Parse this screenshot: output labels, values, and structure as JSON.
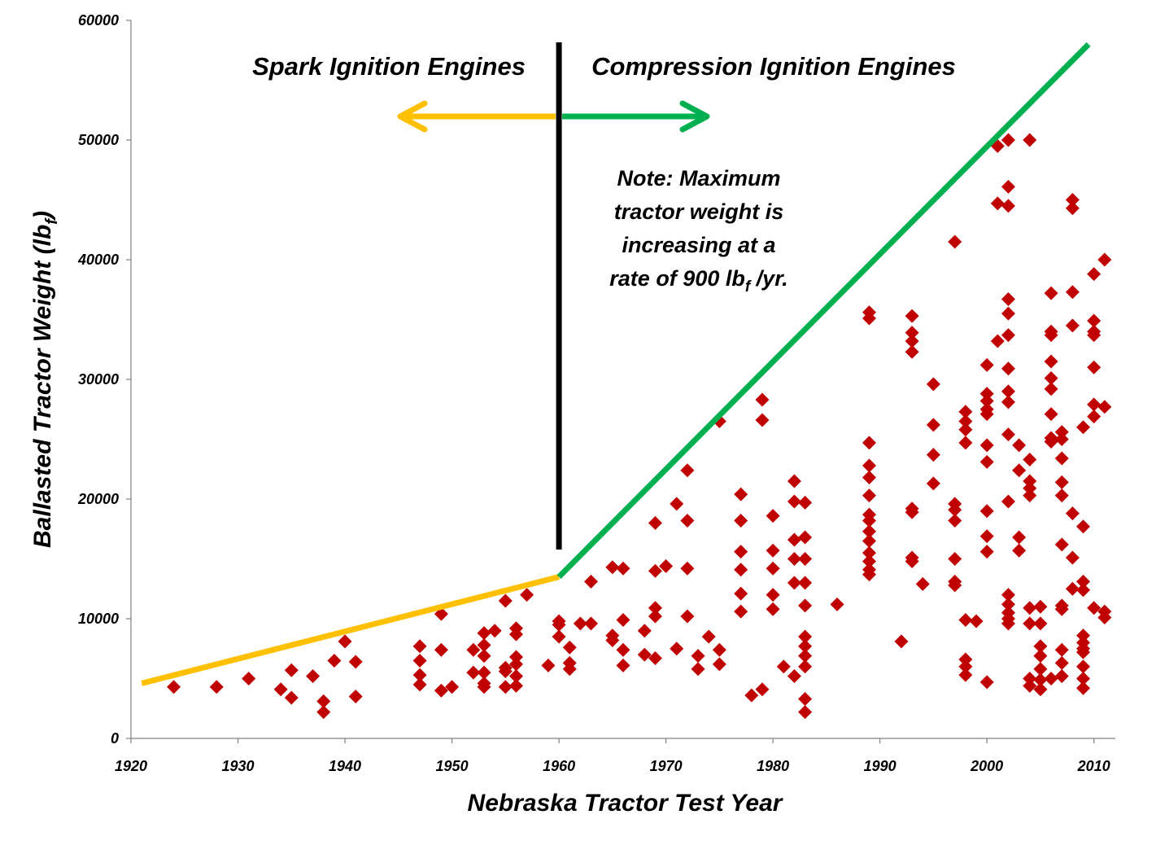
{
  "colors": {
    "background": "#ffffff",
    "points": "#c00000",
    "spark": "#ffc000",
    "compression": "#00b050",
    "divider": "#000000",
    "axis": "#808080"
  },
  "chart_data": {
    "type": "scatter",
    "title": "",
    "xlabel": "Nebraska Tractor Test Year",
    "ylabel": {
      "text": "Ballasted Tractor Weight (lb",
      "subscript": "f",
      "close": ")"
    },
    "xlim": [
      1920,
      2012
    ],
    "ylim": [
      0,
      60000
    ],
    "xticks": [
      "1920",
      "1930",
      "1940",
      "1950",
      "1960",
      "1970",
      "1980",
      "1990",
      "2000",
      "2010"
    ],
    "yticks": [
      "0",
      "10000",
      "20000",
      "30000",
      "40000",
      "50000",
      "60000"
    ],
    "grid": false,
    "legend": "none",
    "regions": {
      "spark": {
        "label": "Spark Ignition Engines",
        "arrow": "left"
      },
      "compression": {
        "label": "Compression Ignition Engines",
        "arrow": "right"
      },
      "divider_year": 1960
    },
    "note": {
      "lines": [
        "Note: Maximum",
        "tractor weight is",
        "increasing at a"
      ],
      "last_line": {
        "before": "rate of 900 lb",
        "subscript": "f",
        "after": " /yr."
      }
    },
    "trend_lines": [
      {
        "name": "spark_max",
        "x": [
          1921,
          1960
        ],
        "y": [
          4600,
          13500
        ]
      },
      {
        "name": "compression_max",
        "x": [
          1960,
          2009.5
        ],
        "y": [
          13500,
          58000
        ]
      }
    ],
    "series": [
      {
        "points": [
          [
            1924,
            4300
          ],
          [
            1928,
            4300
          ],
          [
            1931,
            5000
          ],
          [
            1934,
            4100
          ],
          [
            1935,
            5700
          ],
          [
            1935,
            3400
          ],
          [
            1937,
            5200
          ],
          [
            1938,
            3100
          ],
          [
            1938,
            2200
          ],
          [
            1939,
            6500
          ],
          [
            1940,
            8100
          ],
          [
            1941,
            6400
          ],
          [
            1941,
            3500
          ],
          [
            1947,
            7700
          ],
          [
            1947,
            6500
          ],
          [
            1947,
            5300
          ],
          [
            1947,
            4500
          ],
          [
            1949,
            10400
          ],
          [
            1949,
            7400
          ],
          [
            1949,
            4000
          ],
          [
            1950,
            4300
          ],
          [
            1952,
            7400
          ],
          [
            1952,
            5500
          ],
          [
            1953,
            8800
          ],
          [
            1953,
            7800
          ],
          [
            1953,
            6900
          ],
          [
            1953,
            5500
          ],
          [
            1953,
            4600
          ],
          [
            1953,
            4300
          ],
          [
            1954,
            9000
          ],
          [
            1955,
            11500
          ],
          [
            1955,
            5900
          ],
          [
            1955,
            5600
          ],
          [
            1955,
            4300
          ],
          [
            1956,
            9200
          ],
          [
            1956,
            8700
          ],
          [
            1956,
            6800
          ],
          [
            1956,
            6200
          ],
          [
            1956,
            5200
          ],
          [
            1956,
            4400
          ],
          [
            1957,
            12000
          ],
          [
            1959,
            6100
          ],
          [
            1960,
            9800
          ],
          [
            1960,
            9500
          ],
          [
            1960,
            8500
          ],
          [
            1961,
            7600
          ],
          [
            1961,
            6300
          ],
          [
            1961,
            5800
          ],
          [
            1962,
            9600
          ],
          [
            1963,
            13100
          ],
          [
            1963,
            9600
          ],
          [
            1965,
            14300
          ],
          [
            1965,
            8600
          ],
          [
            1965,
            8200
          ],
          [
            1966,
            14200
          ],
          [
            1966,
            9900
          ],
          [
            1966,
            7400
          ],
          [
            1966,
            6100
          ],
          [
            1968,
            9000
          ],
          [
            1968,
            7000
          ],
          [
            1969,
            18000
          ],
          [
            1969,
            14000
          ],
          [
            1969,
            10900
          ],
          [
            1969,
            10200
          ],
          [
            1969,
            6700
          ],
          [
            1970,
            14400
          ],
          [
            1971,
            19600
          ],
          [
            1971,
            7500
          ],
          [
            1972,
            22400
          ],
          [
            1972,
            18200
          ],
          [
            1972,
            14200
          ],
          [
            1972,
            10200
          ],
          [
            1973,
            6900
          ],
          [
            1973,
            5800
          ],
          [
            1974,
            8500
          ],
          [
            1975,
            26500
          ],
          [
            1975,
            7400
          ],
          [
            1975,
            6200
          ],
          [
            1977,
            20400
          ],
          [
            1977,
            18200
          ],
          [
            1977,
            15600
          ],
          [
            1977,
            14100
          ],
          [
            1977,
            12100
          ],
          [
            1977,
            10600
          ],
          [
            1978,
            3600
          ],
          [
            1979,
            28300
          ],
          [
            1979,
            26600
          ],
          [
            1979,
            4100
          ],
          [
            1980,
            18600
          ],
          [
            1980,
            15700
          ],
          [
            1980,
            14200
          ],
          [
            1980,
            12000
          ],
          [
            1980,
            10800
          ],
          [
            1981,
            6000
          ],
          [
            1982,
            21500
          ],
          [
            1982,
            19800
          ],
          [
            1982,
            16600
          ],
          [
            1982,
            15000
          ],
          [
            1982,
            13000
          ],
          [
            1982,
            5200
          ],
          [
            1983,
            19700
          ],
          [
            1983,
            16800
          ],
          [
            1983,
            15000
          ],
          [
            1983,
            13000
          ],
          [
            1983,
            11100
          ],
          [
            1983,
            8500
          ],
          [
            1983,
            7700
          ],
          [
            1983,
            6900
          ],
          [
            1983,
            6000
          ],
          [
            1983,
            3300
          ],
          [
            1983,
            2200
          ],
          [
            1986,
            11200
          ],
          [
            1989,
            35600
          ],
          [
            1989,
            35100
          ],
          [
            1989,
            24700
          ],
          [
            1989,
            22800
          ],
          [
            1989,
            21800
          ],
          [
            1989,
            20300
          ],
          [
            1989,
            18700
          ],
          [
            1989,
            18200
          ],
          [
            1989,
            17300
          ],
          [
            1989,
            16500
          ],
          [
            1989,
            15500
          ],
          [
            1989,
            14800
          ],
          [
            1989,
            14100
          ],
          [
            1989,
            13700
          ],
          [
            1992,
            8100
          ],
          [
            1993,
            35300
          ],
          [
            1993,
            33900
          ],
          [
            1993,
            33200
          ],
          [
            1993,
            32300
          ],
          [
            1993,
            19200
          ],
          [
            1993,
            18900
          ],
          [
            1993,
            15100
          ],
          [
            1993,
            14800
          ],
          [
            1994,
            12900
          ],
          [
            1995,
            29600
          ],
          [
            1995,
            26200
          ],
          [
            1995,
            23700
          ],
          [
            1995,
            21300
          ],
          [
            1997,
            41500
          ],
          [
            1997,
            19600
          ],
          [
            1997,
            19100
          ],
          [
            1997,
            18200
          ],
          [
            1997,
            15000
          ],
          [
            1997,
            13100
          ],
          [
            1997,
            12800
          ],
          [
            1998,
            27300
          ],
          [
            1998,
            26500
          ],
          [
            1998,
            25800
          ],
          [
            1998,
            24700
          ],
          [
            1998,
            9900
          ],
          [
            1998,
            6600
          ],
          [
            1998,
            6000
          ],
          [
            1998,
            5300
          ],
          [
            1999,
            9800
          ],
          [
            2000,
            31200
          ],
          [
            2000,
            28800
          ],
          [
            2000,
            28200
          ],
          [
            2000,
            27500
          ],
          [
            2000,
            27100
          ],
          [
            2000,
            24500
          ],
          [
            2000,
            23100
          ],
          [
            2000,
            19000
          ],
          [
            2000,
            16900
          ],
          [
            2000,
            15600
          ],
          [
            2000,
            4700
          ],
          [
            2001,
            49500
          ],
          [
            2001,
            44700
          ],
          [
            2001,
            33200
          ],
          [
            2002,
            50000
          ],
          [
            2002,
            46100
          ],
          [
            2002,
            44500
          ],
          [
            2002,
            36700
          ],
          [
            2002,
            35500
          ],
          [
            2002,
            33700
          ],
          [
            2002,
            30900
          ],
          [
            2002,
            29000
          ],
          [
            2002,
            28100
          ],
          [
            2002,
            25400
          ],
          [
            2002,
            19800
          ],
          [
            2002,
            12000
          ],
          [
            2002,
            11200
          ],
          [
            2002,
            10500
          ],
          [
            2002,
            10000
          ],
          [
            2002,
            9600
          ],
          [
            2003,
            24500
          ],
          [
            2003,
            22400
          ],
          [
            2003,
            16800
          ],
          [
            2003,
            15700
          ],
          [
            2004,
            50000
          ],
          [
            2004,
            23300
          ],
          [
            2004,
            21500
          ],
          [
            2004,
            20900
          ],
          [
            2004,
            20300
          ],
          [
            2004,
            10900
          ],
          [
            2004,
            9600
          ],
          [
            2004,
            5000
          ],
          [
            2004,
            4400
          ],
          [
            2005,
            11000
          ],
          [
            2005,
            9600
          ],
          [
            2005,
            7700
          ],
          [
            2005,
            6900
          ],
          [
            2005,
            5800
          ],
          [
            2005,
            4900
          ],
          [
            2005,
            4100
          ],
          [
            2006,
            37200
          ],
          [
            2006,
            34000
          ],
          [
            2006,
            33700
          ],
          [
            2006,
            31500
          ],
          [
            2006,
            30100
          ],
          [
            2006,
            29200
          ],
          [
            2006,
            27100
          ],
          [
            2006,
            25100
          ],
          [
            2006,
            24800
          ],
          [
            2006,
            5000
          ],
          [
            2007,
            25600
          ],
          [
            2007,
            25000
          ],
          [
            2007,
            23400
          ],
          [
            2007,
            21400
          ],
          [
            2007,
            20300
          ],
          [
            2007,
            16200
          ],
          [
            2007,
            11100
          ],
          [
            2007,
            10800
          ],
          [
            2007,
            7400
          ],
          [
            2007,
            6300
          ],
          [
            2007,
            5200
          ],
          [
            2008,
            45000
          ],
          [
            2008,
            44300
          ],
          [
            2008,
            37300
          ],
          [
            2008,
            34500
          ],
          [
            2008,
            18800
          ],
          [
            2008,
            15100
          ],
          [
            2008,
            12500
          ],
          [
            2009,
            26000
          ],
          [
            2009,
            17700
          ],
          [
            2009,
            13100
          ],
          [
            2009,
            12400
          ],
          [
            2009,
            8600
          ],
          [
            2009,
            8000
          ],
          [
            2009,
            7500
          ],
          [
            2009,
            7200
          ],
          [
            2009,
            6000
          ],
          [
            2009,
            5000
          ],
          [
            2009,
            4200
          ],
          [
            2010,
            38800
          ],
          [
            2010,
            34900
          ],
          [
            2010,
            34000
          ],
          [
            2010,
            33700
          ],
          [
            2010,
            31000
          ],
          [
            2010,
            27900
          ],
          [
            2010,
            26900
          ],
          [
            2010,
            10900
          ],
          [
            2011,
            40000
          ],
          [
            2011,
            27700
          ],
          [
            2011,
            10600
          ],
          [
            2011,
            10100
          ]
        ]
      }
    ]
  }
}
